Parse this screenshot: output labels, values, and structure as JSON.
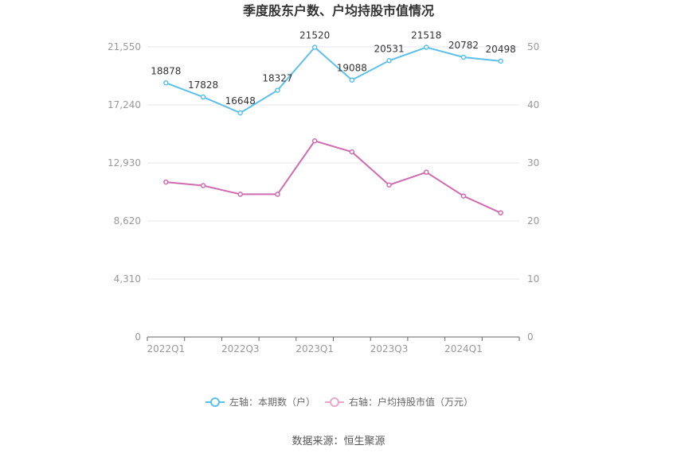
{
  "chart_data": {
    "type": "line",
    "title": "季度股东户数、户均持股市值情况",
    "source": "数据来源：恒生聚源",
    "categories": [
      "2022Q1",
      "2022Q2",
      "2022Q3",
      "2022Q4",
      "2023Q1",
      "2023Q2",
      "2023Q3",
      "2023Q4",
      "2024Q1",
      "2024Q2"
    ],
    "x_tick_labels": [
      "2022Q1",
      "2022Q3",
      "2023Q1",
      "2023Q3",
      "2024Q1"
    ],
    "left_axis": {
      "min": 0,
      "max": 21550,
      "ticks": [
        0,
        4310,
        8620,
        12930,
        17240,
        21550
      ],
      "tick_labels": [
        "0",
        "4,310",
        "8,620",
        "12,930",
        "17,240",
        "21,550"
      ]
    },
    "right_axis": {
      "min": 0,
      "max": 50,
      "ticks": [
        0,
        10,
        20,
        30,
        40,
        50
      ],
      "tick_labels": [
        "0",
        "10",
        "20",
        "30",
        "40",
        "50"
      ]
    },
    "series": [
      {
        "name": "左轴：本期数（户）",
        "axis": "left",
        "color": "#5bc0eb",
        "values": [
          18878,
          17828,
          16648,
          18327,
          21520,
          19088,
          20531,
          21518,
          20782,
          20498
        ],
        "labels": [
          "18878",
          "17828",
          "16648",
          "18327",
          "21520",
          "19088",
          "20531",
          "21518",
          "20782",
          "20498"
        ]
      },
      {
        "name": "右轴：户均持股市值（万元）",
        "axis": "right",
        "color": "#d06bb0",
        "values": [
          26.7,
          26.1,
          24.6,
          24.6,
          33.8,
          31.9,
          26.2,
          28.4,
          24.3,
          21.4
        ]
      }
    ],
    "grid": true,
    "legend_position": "bottom"
  }
}
